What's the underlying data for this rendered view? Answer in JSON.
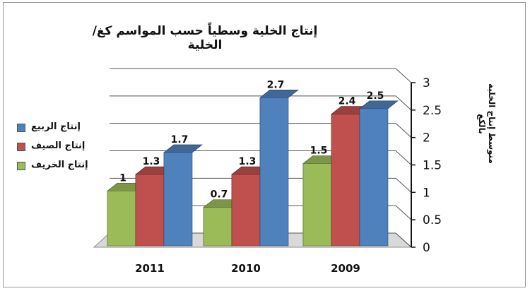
{
  "chart_data": {
    "type": "bar",
    "title": "إنتاج الخلية وسطياً حسب المواسم  كغ/الخلية",
    "ylabel": "متوسط إنتاج الخلية بالكغ",
    "xlabel": "",
    "ylim": [
      0,
      3
    ],
    "yticks": [
      0,
      0.5,
      1,
      1.5,
      2,
      2.5,
      3
    ],
    "ytick_labels": [
      "0",
      "0.5",
      "1",
      "1.5",
      "2",
      "2.5",
      "3"
    ],
    "categories": [
      "2011",
      "2010",
      "2009"
    ],
    "series": [
      {
        "name": "إنتاج الخريف",
        "color": "#9bbb59",
        "values": [
          1,
          0.7,
          1.5
        ],
        "labels": [
          "1",
          "0.7",
          "1.5"
        ]
      },
      {
        "name": "إنتاج الصيف",
        "color": "#c0504d",
        "values": [
          1.3,
          1.3,
          2.4
        ],
        "labels": [
          "1.3",
          "1.3",
          "2.4"
        ]
      },
      {
        "name": "إنتاج الربيع",
        "color": "#4f81bd",
        "values": [
          1.7,
          2.7,
          2.5
        ],
        "labels": [
          "1.7",
          "2.7",
          "2.5"
        ]
      }
    ],
    "legend_order": [
      2,
      1,
      0
    ],
    "legend_position": "left",
    "grid": true,
    "style": "3d-clustered-column"
  }
}
